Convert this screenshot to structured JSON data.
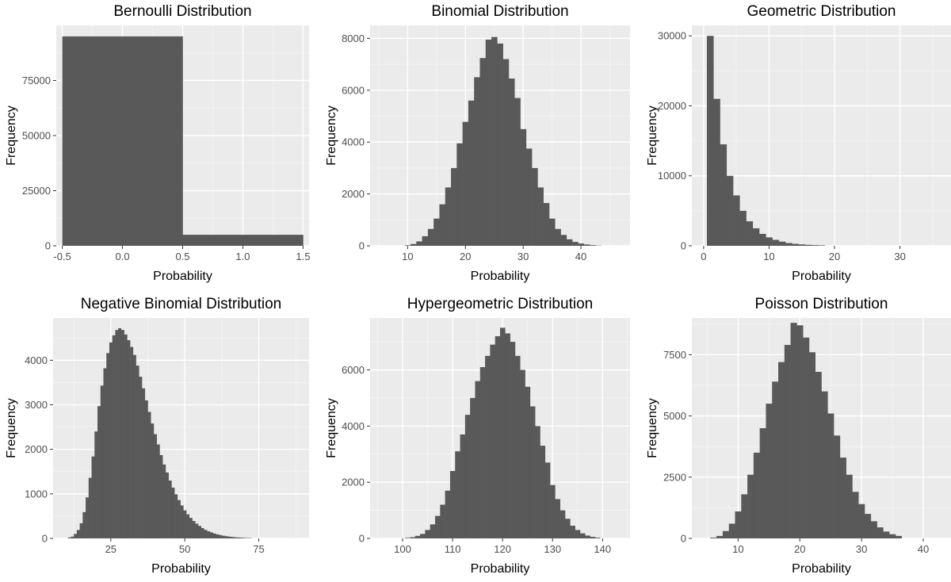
{
  "style": {
    "panel_bg": "#ebebeb",
    "grid_major": "#ffffff",
    "grid_minor": "#f5f5f5",
    "bar_fill": "#595959",
    "tick_color": "#333333",
    "label_color": "#4d4d4d"
  },
  "chart_data": [
    {
      "type": "bar",
      "title": "Bernoulli Distribution",
      "xlabel": "Probability",
      "ylabel": "Frequency",
      "xlim": [
        -0.55,
        1.55
      ],
      "ylim": [
        0,
        100000
      ],
      "xticks": [
        -0.5,
        0.0,
        0.5,
        1.0,
        1.5
      ],
      "xtick_labels": [
        "-0.5",
        "0.0",
        "0.5",
        "1.0",
        "1.5"
      ],
      "yticks": [
        0,
        25000,
        50000,
        75000
      ],
      "ytick_labels": [
        "0",
        "25000",
        "50000",
        "75000"
      ],
      "bin_width": 1,
      "bins": [
        [
          0,
          95000
        ],
        [
          1,
          5000
        ]
      ]
    },
    {
      "type": "bar",
      "title": "Binomial Distribution",
      "xlabel": "Probability",
      "ylabel": "Frequency",
      "xlim": [
        3.5,
        48.5
      ],
      "ylim": [
        0,
        8500
      ],
      "xticks": [
        10,
        20,
        30,
        40
      ],
      "xtick_labels": [
        "10",
        "20",
        "30",
        "40"
      ],
      "yticks": [
        0,
        2000,
        4000,
        6000,
        8000
      ],
      "ytick_labels": [
        "0",
        "2000",
        "4000",
        "6000",
        "8000"
      ],
      "bin_width": 1,
      "bins": [
        [
          10,
          20
        ],
        [
          11,
          70
        ],
        [
          12,
          170
        ],
        [
          13,
          370
        ],
        [
          14,
          650
        ],
        [
          15,
          1050
        ],
        [
          16,
          1600
        ],
        [
          17,
          2250
        ],
        [
          18,
          3000
        ],
        [
          19,
          3950
        ],
        [
          20,
          4780
        ],
        [
          21,
          5600
        ],
        [
          22,
          6500
        ],
        [
          23,
          7240
        ],
        [
          24,
          7950
        ],
        [
          25,
          8050
        ],
        [
          26,
          7800
        ],
        [
          27,
          7200
        ],
        [
          28,
          6450
        ],
        [
          29,
          5700
        ],
        [
          30,
          4500
        ],
        [
          31,
          3750
        ],
        [
          32,
          3000
        ],
        [
          33,
          2250
        ],
        [
          34,
          1650
        ],
        [
          35,
          1050
        ],
        [
          36,
          650
        ],
        [
          37,
          420
        ],
        [
          38,
          250
        ],
        [
          39,
          150
        ],
        [
          40,
          90
        ],
        [
          41,
          50
        ],
        [
          42,
          25
        ],
        [
          43,
          10
        ]
      ]
    },
    {
      "type": "bar",
      "title": "Geometric Distribution",
      "xlabel": "Probability",
      "ylabel": "Frequency",
      "xlim": [
        -1.8,
        37.8
      ],
      "ylim": [
        0,
        31500
      ],
      "xticks": [
        0,
        10,
        20,
        30
      ],
      "xtick_labels": [
        "0",
        "10",
        "20",
        "30"
      ],
      "yticks": [
        0,
        10000,
        20000,
        30000
      ],
      "ytick_labels": [
        "0",
        "10000",
        "20000",
        "30000"
      ],
      "bin_width": 1,
      "bins": [
        [
          1,
          30000
        ],
        [
          2,
          21000
        ],
        [
          3,
          14500
        ],
        [
          4,
          10000
        ],
        [
          5,
          7200
        ],
        [
          6,
          5000
        ],
        [
          7,
          3500
        ],
        [
          8,
          2500
        ],
        [
          9,
          1700
        ],
        [
          10,
          1200
        ],
        [
          11,
          850
        ],
        [
          12,
          600
        ],
        [
          13,
          400
        ],
        [
          14,
          280
        ],
        [
          15,
          200
        ],
        [
          16,
          140
        ],
        [
          17,
          100
        ],
        [
          18,
          70
        ]
      ]
    },
    {
      "type": "bar",
      "title": "Negative Binomial Distribution",
      "xlabel": "Probability",
      "ylabel": "Frequency",
      "xlim": [
        5.5,
        92
      ],
      "ylim": [
        0,
        4950
      ],
      "xticks": [
        25,
        50,
        75
      ],
      "xtick_labels": [
        "25",
        "50",
        "75"
      ],
      "yticks": [
        0,
        1000,
        2000,
        3000,
        4000
      ],
      "ytick_labels": [
        "0",
        "1000",
        "2000",
        "3000",
        "4000"
      ],
      "bin_width": 1,
      "bins": [
        [
          11,
          20
        ],
        [
          12,
          40
        ],
        [
          13,
          100
        ],
        [
          14,
          190
        ],
        [
          15,
          340
        ],
        [
          16,
          590
        ],
        [
          17,
          920
        ],
        [
          18,
          1360
        ],
        [
          19,
          1840
        ],
        [
          20,
          2400
        ],
        [
          21,
          2970
        ],
        [
          22,
          3430
        ],
        [
          23,
          3820
        ],
        [
          24,
          4160
        ],
        [
          25,
          4400
        ],
        [
          26,
          4560
        ],
        [
          27,
          4680
        ],
        [
          28,
          4720
        ],
        [
          29,
          4680
        ],
        [
          30,
          4580
        ],
        [
          31,
          4450
        ],
        [
          32,
          4300
        ],
        [
          33,
          4120
        ],
        [
          34,
          3880
        ],
        [
          35,
          3630
        ],
        [
          36,
          3370
        ],
        [
          37,
          3100
        ],
        [
          38,
          2840
        ],
        [
          39,
          2580
        ],
        [
          40,
          2340
        ],
        [
          41,
          2110
        ],
        [
          42,
          1870
        ],
        [
          43,
          1660
        ],
        [
          44,
          1480
        ],
        [
          45,
          1300
        ],
        [
          46,
          1140
        ],
        [
          47,
          990
        ],
        [
          48,
          860
        ],
        [
          49,
          740
        ],
        [
          50,
          630
        ],
        [
          51,
          540
        ],
        [
          52,
          460
        ],
        [
          53,
          390
        ],
        [
          54,
          330
        ],
        [
          55,
          280
        ],
        [
          56,
          230
        ],
        [
          57,
          190
        ],
        [
          58,
          160
        ],
        [
          59,
          135
        ],
        [
          60,
          110
        ],
        [
          61,
          90
        ],
        [
          62,
          75
        ],
        [
          63,
          60
        ],
        [
          64,
          50
        ],
        [
          65,
          40
        ],
        [
          66,
          32
        ],
        [
          67,
          26
        ],
        [
          68,
          20
        ],
        [
          69,
          16
        ],
        [
          70,
          12
        ],
        [
          71,
          9
        ],
        [
          72,
          7
        ]
      ]
    },
    {
      "type": "bar",
      "title": "Hypergeometric Distribution",
      "xlabel": "Probability",
      "ylabel": "Frequency",
      "xlim": [
        93.5,
        145.5
      ],
      "ylim": [
        0,
        7850
      ],
      "xticks": [
        100,
        110,
        120,
        130,
        140
      ],
      "xtick_labels": [
        "100",
        "110",
        "120",
        "130",
        "140"
      ],
      "yticks": [
        0,
        2000,
        4000,
        6000
      ],
      "ytick_labels": [
        "0",
        "2000",
        "4000",
        "6000"
      ],
      "bin_width": 1,
      "bins": [
        [
          101,
          20
        ],
        [
          102,
          40
        ],
        [
          103,
          90
        ],
        [
          104,
          160
        ],
        [
          105,
          300
        ],
        [
          106,
          500
        ],
        [
          107,
          800
        ],
        [
          108,
          1200
        ],
        [
          109,
          1700
        ],
        [
          110,
          2400
        ],
        [
          111,
          3100
        ],
        [
          112,
          3700
        ],
        [
          113,
          4400
        ],
        [
          114,
          5000
        ],
        [
          115,
          5600
        ],
        [
          116,
          6100
        ],
        [
          117,
          6500
        ],
        [
          118,
          6900
        ],
        [
          119,
          7200
        ],
        [
          120,
          7500
        ],
        [
          121,
          7300
        ],
        [
          122,
          7000
        ],
        [
          123,
          6500
        ],
        [
          124,
          6000
        ],
        [
          125,
          5400
        ],
        [
          126,
          4700
        ],
        [
          127,
          4000
        ],
        [
          128,
          3300
        ],
        [
          129,
          2700
        ],
        [
          130,
          1900
        ],
        [
          131,
          1400
        ],
        [
          132,
          1000
        ],
        [
          133,
          700
        ],
        [
          134,
          450
        ],
        [
          135,
          300
        ],
        [
          136,
          180
        ],
        [
          137,
          100
        ],
        [
          138,
          55
        ],
        [
          139,
          25
        ]
      ]
    },
    {
      "type": "bar",
      "title": "Poisson Distribution",
      "xlabel": "Probability",
      "ylabel": "Frequency",
      "xlim": [
        2.5,
        44.5
      ],
      "ylim": [
        0,
        9000
      ],
      "xticks": [
        10,
        20,
        30,
        40
      ],
      "xtick_labels": [
        "10",
        "20",
        "30",
        "40"
      ],
      "yticks": [
        0,
        2500,
        5000,
        7500
      ],
      "ytick_labels": [
        "0",
        "2500",
        "5000",
        "7500"
      ],
      "bin_width": 1,
      "bins": [
        [
          6,
          30
        ],
        [
          7,
          100
        ],
        [
          8,
          300
        ],
        [
          9,
          600
        ],
        [
          10,
          1100
        ],
        [
          11,
          1800
        ],
        [
          12,
          2600
        ],
        [
          13,
          3500
        ],
        [
          14,
          4500
        ],
        [
          15,
          5500
        ],
        [
          16,
          6400
        ],
        [
          17,
          7200
        ],
        [
          18,
          7900
        ],
        [
          19,
          8800
        ],
        [
          20,
          8700
        ],
        [
          21,
          8200
        ],
        [
          22,
          7600
        ],
        [
          23,
          6800
        ],
        [
          24,
          6000
        ],
        [
          25,
          5100
        ],
        [
          26,
          4200
        ],
        [
          27,
          3300
        ],
        [
          28,
          2600
        ],
        [
          29,
          1900
        ],
        [
          30,
          1400
        ],
        [
          31,
          1000
        ],
        [
          32,
          700
        ],
        [
          33,
          450
        ],
        [
          34,
          280
        ],
        [
          35,
          170
        ],
        [
          36,
          100
        ]
      ]
    }
  ]
}
